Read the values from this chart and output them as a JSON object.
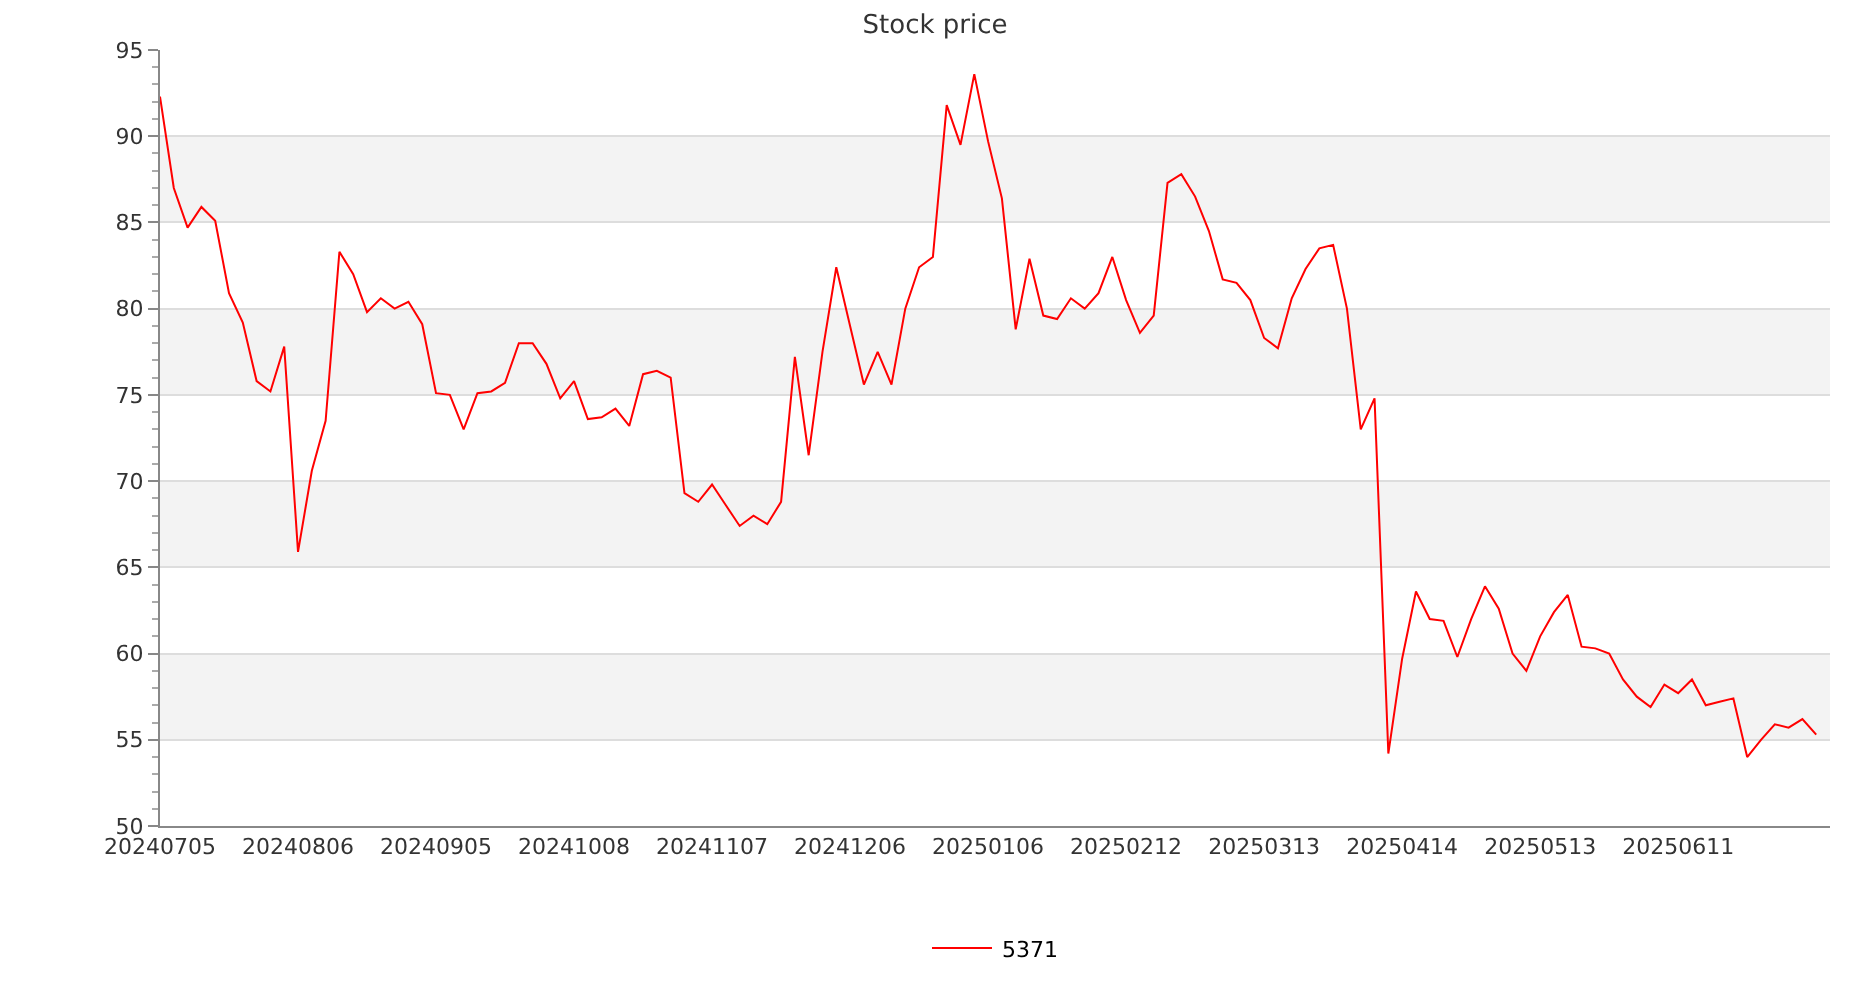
{
  "chart_data": {
    "type": "line",
    "title": "Stock price",
    "categories": [
      "20240705",
      null,
      null,
      null,
      null,
      null,
      null,
      null,
      null,
      null,
      "20240806",
      null,
      null,
      null,
      null,
      null,
      null,
      null,
      null,
      null,
      "20240905",
      null,
      null,
      null,
      null,
      null,
      null,
      null,
      null,
      null,
      "20241008",
      null,
      null,
      null,
      null,
      null,
      null,
      null,
      null,
      null,
      "20241107",
      null,
      null,
      null,
      null,
      null,
      null,
      null,
      null,
      null,
      "20241206",
      null,
      null,
      null,
      null,
      null,
      null,
      null,
      null,
      null,
      "20250106",
      null,
      null,
      null,
      null,
      null,
      null,
      null,
      null,
      null,
      "20250212",
      null,
      null,
      null,
      null,
      null,
      null,
      null,
      null,
      null,
      "20250313",
      null,
      null,
      null,
      null,
      null,
      null,
      null,
      null,
      null,
      "20250414",
      null,
      null,
      null,
      null,
      null,
      null,
      null,
      null,
      null,
      "20250513",
      null,
      null,
      null,
      null,
      null,
      null,
      null,
      null,
      null,
      "20250611",
      null,
      null,
      null,
      null,
      null,
      null,
      null,
      null,
      null,
      null
    ],
    "series": [
      {
        "name": "5371",
        "color": "#ff0000",
        "values": [
          92.3,
          87.0,
          84.7,
          85.9,
          85.1,
          80.9,
          79.2,
          75.8,
          75.2,
          77.8,
          65.9,
          70.6,
          73.5,
          83.3,
          82.0,
          79.8,
          80.6,
          80.0,
          80.4,
          79.1,
          75.1,
          75.0,
          73.0,
          75.1,
          75.2,
          75.7,
          78.0,
          78.0,
          76.8,
          74.8,
          75.8,
          73.6,
          73.7,
          74.2,
          73.2,
          76.2,
          76.4,
          76.0,
          69.3,
          68.8,
          69.8,
          68.6,
          67.4,
          68.0,
          67.5,
          68.8,
          77.2,
          71.5,
          77.5,
          82.4,
          79.0,
          75.6,
          77.5,
          75.6,
          80.0,
          82.4,
          83.0,
          91.8,
          89.5,
          93.6,
          89.7,
          86.4,
          78.8,
          82.9,
          79.6,
          79.4,
          80.6,
          80.0,
          80.9,
          83.0,
          80.5,
          78.6,
          79.6,
          87.3,
          87.8,
          86.5,
          84.5,
          81.7,
          81.5,
          80.5,
          78.3,
          77.7,
          80.6,
          82.3,
          83.5,
          83.7,
          80.0,
          73.0,
          74.8,
          54.2,
          59.7,
          63.6,
          62.0,
          61.9,
          59.8,
          62.0,
          63.9,
          62.6,
          60.0,
          59.0,
          61.0,
          62.4,
          63.4,
          60.4,
          60.3,
          60.0,
          58.5,
          57.5,
          56.9,
          58.2,
          57.7,
          58.5,
          57.0,
          57.2,
          57.4,
          54.0,
          55.0,
          55.9,
          55.7,
          56.2,
          55.3
        ]
      }
    ],
    "ylim": [
      50,
      95
    ],
    "yticks": [
      50,
      55,
      60,
      65,
      70,
      75,
      80,
      85,
      90,
      95
    ],
    "grid": "y",
    "legend": "bottom",
    "marker": "none",
    "line_style": "solid"
  }
}
